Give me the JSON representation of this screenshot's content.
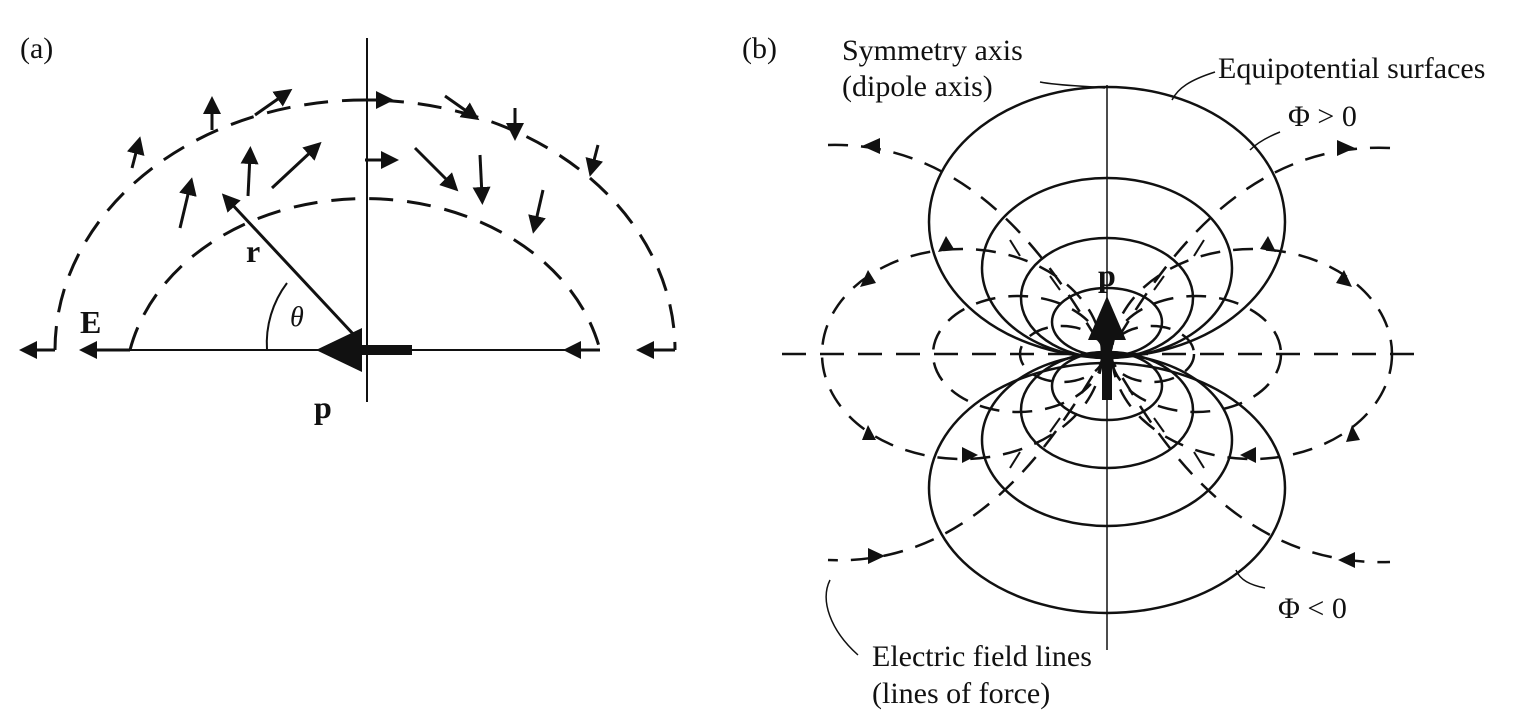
{
  "panel_a": {
    "label": "(a)",
    "field_label": "E",
    "radius_label": "r",
    "angle_label": "θ",
    "dipole_label": "p"
  },
  "panel_b": {
    "label": "(b)",
    "dipole_label": "p",
    "symmetry_axis_line1": "Symmetry axis",
    "symmetry_axis_line2": "(dipole axis)",
    "equipotential_label": "Equipotential surfaces",
    "phi_positive": "Φ > 0",
    "phi_negative": "Φ < 0",
    "field_lines_line1": "Electric field lines",
    "field_lines_line2": "(lines of force)"
  },
  "colors": {
    "ink": "#111111",
    "background": "#ffffff"
  }
}
